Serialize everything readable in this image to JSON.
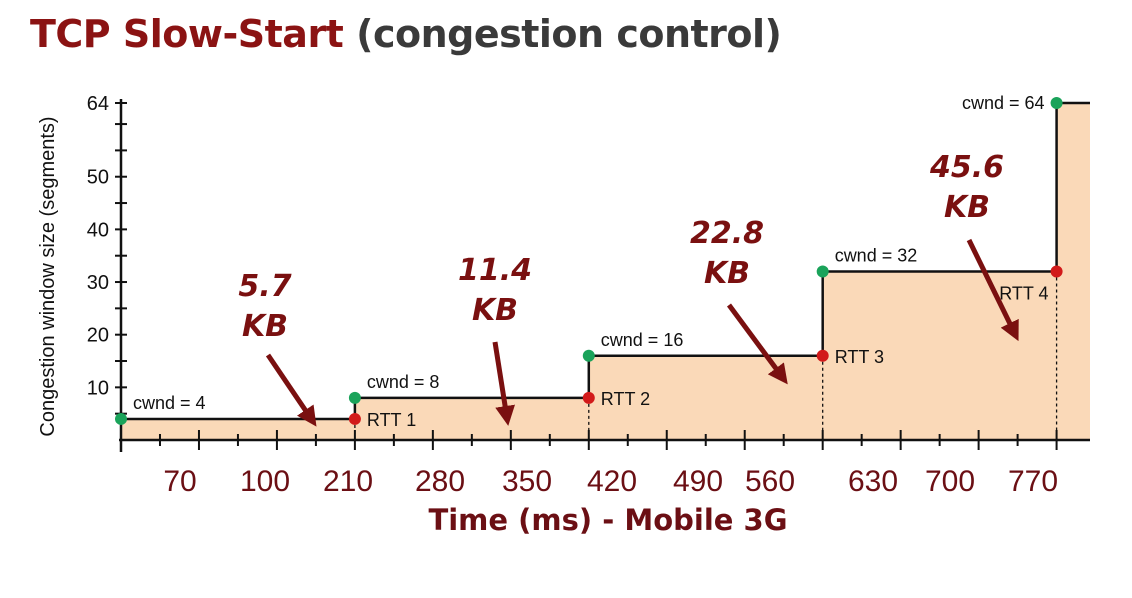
{
  "title": {
    "main": "TCP Slow-Start",
    "sub": "(congestion control)"
  },
  "colors": {
    "title_main": "#8b1313",
    "title_sub": "#3a3a3a",
    "fill": "#fad9b8",
    "start_dot": "#1aa35a",
    "rtt_dot": "#d21a1a",
    "arrow": "#7a1010",
    "axis_text": "#6b0f14"
  },
  "chart_data": {
    "type": "area",
    "title": "TCP Slow-Start (congestion control)",
    "xlabel": "Time (ms) - Mobile 3G",
    "ylabel": "Congestion window size (segments)",
    "x_tick_labels": [
      "70",
      "100",
      "210",
      "280",
      "350",
      "420",
      "490",
      "560",
      "630",
      "700",
      "770"
    ],
    "y_ticks": [
      10,
      20,
      30,
      40,
      50,
      64
    ],
    "ylim": [
      0,
      64
    ],
    "steps": [
      {
        "x_start": 0,
        "x_end": 210,
        "cwnd": 4,
        "start_label": "cwnd = 4",
        "end_label": "RTT 1"
      },
      {
        "x_start": 210,
        "x_end": 420,
        "cwnd": 8,
        "start_label": "cwnd = 8",
        "end_label": "RTT 2"
      },
      {
        "x_start": 420,
        "x_end": 630,
        "cwnd": 16,
        "start_label": "cwnd = 16",
        "end_label": "RTT 3"
      },
      {
        "x_start": 630,
        "x_end": 840,
        "cwnd": 32,
        "start_label": "cwnd = 32",
        "end_label": "RTT 4"
      },
      {
        "x_start": 840,
        "x_end": 870,
        "cwnd": 64,
        "start_label": "cwnd = 64",
        "end_label": ""
      }
    ],
    "annotations": [
      {
        "line1": "5.7",
        "line2": "KB"
      },
      {
        "line1": "11.4",
        "line2": "KB"
      },
      {
        "line1": "22.8",
        "line2": "KB"
      },
      {
        "line1": "45.6",
        "line2": "KB"
      }
    ],
    "grid": false,
    "legend": "none"
  }
}
